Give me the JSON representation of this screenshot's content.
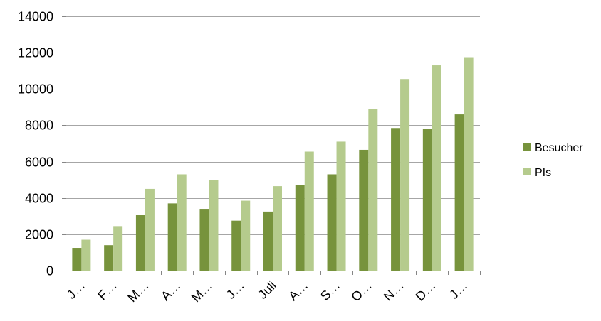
{
  "chart_data": {
    "type": "bar",
    "title": "",
    "xlabel": "",
    "ylabel": "",
    "categories": [
      "J…",
      "F…",
      "M…",
      "A…",
      "M…",
      "J…",
      "Juli",
      "A…",
      "S…",
      "O…",
      "N…",
      "D…",
      "J…"
    ],
    "series": [
      {
        "name": "Besucher",
        "color": "#77933C",
        "values": [
          1250,
          1400,
          3050,
          3700,
          3400,
          2750,
          3250,
          4700,
          5300,
          6650,
          7850,
          7800,
          8600
        ]
      },
      {
        "name": "PIs",
        "color": "#B5CB8D",
        "values": [
          1700,
          2450,
          4500,
          5300,
          5000,
          3850,
          4650,
          6550,
          7100,
          8900,
          10550,
          11300,
          11750
        ]
      }
    ],
    "ylim": [
      0,
      14000
    ],
    "yticks": [
      0,
      2000,
      4000,
      6000,
      8000,
      10000,
      12000,
      14000
    ],
    "grid": true,
    "legend_position": "right",
    "gridline_color": "#A6A6A6",
    "axis_color": "#868686"
  }
}
